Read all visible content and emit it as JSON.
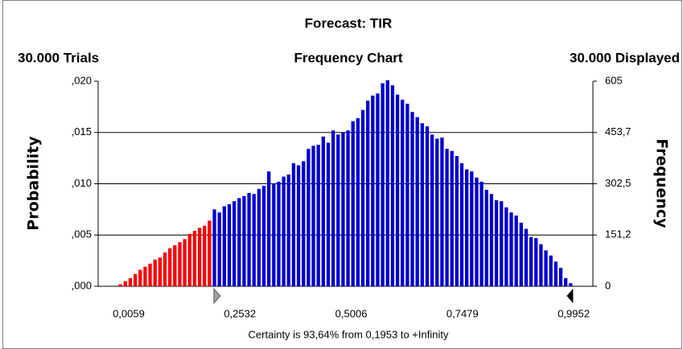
{
  "chart_data": {
    "type": "histogram",
    "title": "Forecast: TIR",
    "left_header": "30.000 Trials",
    "subtitle": "Frequency Chart",
    "right_header": "30.000 Displayed",
    "ylabel": "Probability",
    "y2label": "Frequency",
    "footer": "Certainty is 93,64% from 0,1953 to +Infinity",
    "certainty_from": 0.1953,
    "color": "#0000cc",
    "highlight_color": "#ff0000",
    "grid": true,
    "xlim": [
      -0.062,
      1.038
    ],
    "xticks": [
      {
        "value": 0.0059,
        "label": "0,0059"
      },
      {
        "value": 0.2532,
        "label": "0,2532"
      },
      {
        "value": 0.5006,
        "label": "0,5006"
      },
      {
        "value": 0.7479,
        "label": "0,7479"
      },
      {
        "value": 0.9952,
        "label": "0,9952"
      }
    ],
    "ylim": [
      0,
      0.02
    ],
    "yticks": [
      {
        "value": 0,
        "label": ",000"
      },
      {
        "value": 0.005,
        "label": ",005"
      },
      {
        "value": 0.01,
        "label": ",010"
      },
      {
        "value": 0.015,
        "label": ",015"
      },
      {
        "value": 0.02,
        "label": ",020"
      }
    ],
    "y2lim": [
      0,
      605
    ],
    "y2ticks": [
      0,
      {
        "value": 151.2,
        "label": "151,2"
      },
      {
        "value": 302.5,
        "label": "302,5"
      },
      {
        "value": 453.7,
        "label": "453,7"
      },
      605
    ],
    "bins": [
      -0.018,
      -0.007,
      0.004,
      0.015,
      0.026,
      0.037,
      0.048,
      0.059,
      0.07,
      0.081,
      0.092,
      0.103,
      0.114,
      0.125,
      0.136,
      0.147,
      0.158,
      0.169,
      0.18,
      0.191,
      0.202,
      0.213,
      0.224,
      0.235,
      0.246,
      0.257,
      0.268,
      0.279,
      0.29,
      0.301,
      0.312,
      0.323,
      0.334,
      0.345,
      0.356,
      0.367,
      0.378,
      0.389,
      0.4,
      0.411,
      0.422,
      0.433,
      0.444,
      0.455,
      0.466,
      0.477,
      0.488,
      0.499,
      0.51,
      0.521,
      0.532,
      0.543,
      0.554,
      0.565,
      0.576,
      0.587,
      0.598,
      0.609,
      0.62,
      0.631,
      0.642,
      0.653,
      0.664,
      0.675,
      0.686,
      0.697,
      0.708,
      0.719,
      0.73,
      0.741,
      0.752,
      0.763,
      0.774,
      0.785,
      0.796,
      0.807,
      0.818,
      0.829,
      0.84,
      0.851,
      0.862,
      0.873,
      0.884,
      0.895,
      0.906,
      0.917,
      0.928,
      0.939,
      0.95,
      0.961,
      0.972,
      0.983,
      0.994
    ],
    "values": [
      0.0002,
      0.0005,
      0.0008,
      0.0012,
      0.0016,
      0.0019,
      0.0022,
      0.0026,
      0.0028,
      0.0033,
      0.0037,
      0.004,
      0.0043,
      0.0046,
      0.0051,
      0.0054,
      0.0057,
      0.0059,
      0.0064,
      0.0075,
      0.0072,
      0.0078,
      0.008,
      0.0083,
      0.0086,
      0.0088,
      0.0091,
      0.009,
      0.0095,
      0.0098,
      0.0112,
      0.01,
      0.0102,
      0.0107,
      0.0109,
      0.012,
      0.0118,
      0.0122,
      0.0134,
      0.0137,
      0.0138,
      0.0146,
      0.014,
      0.0152,
      0.0148,
      0.015,
      0.0152,
      0.0161,
      0.0164,
      0.0172,
      0.0181,
      0.0186,
      0.0188,
      0.0198,
      0.0201,
      0.0196,
      0.0187,
      0.0182,
      0.0178,
      0.017,
      0.0165,
      0.0159,
      0.0156,
      0.0148,
      0.0144,
      0.0145,
      0.0134,
      0.0132,
      0.0127,
      0.012,
      0.0114,
      0.0112,
      0.0106,
      0.0102,
      0.0094,
      0.009,
      0.0084,
      0.0083,
      0.0077,
      0.0072,
      0.0069,
      0.0062,
      0.0056,
      0.0048,
      0.0047,
      0.0041,
      0.0035,
      0.003,
      0.0024,
      0.0018,
      0.0008,
      0.0003
    ]
  }
}
